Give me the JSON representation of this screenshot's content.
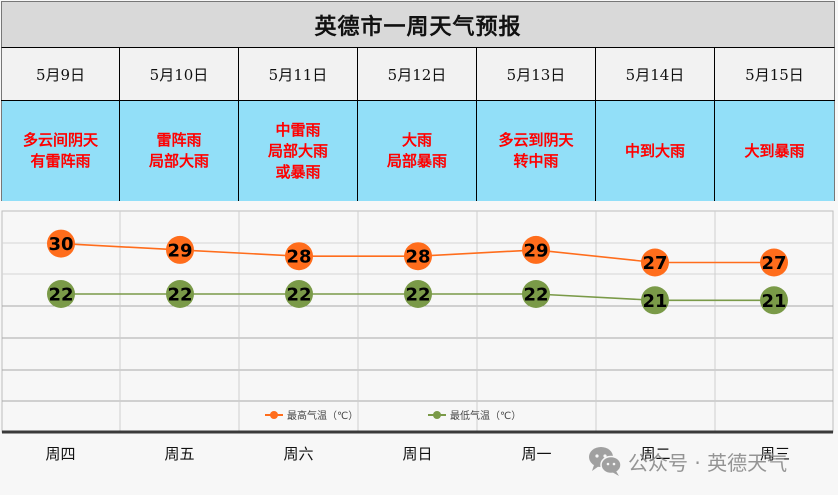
{
  "title": "英德市一周天气预报",
  "days": [
    {
      "date": "5月9日",
      "weather": "多云间阴天\n有雷阵雨",
      "weekday": "周四",
      "high": 30,
      "low": 22
    },
    {
      "date": "5月10日",
      "weather": "雷阵雨\n局部大雨",
      "weekday": "周五",
      "high": 29,
      "low": 22
    },
    {
      "date": "5月11日",
      "weather": "中雷雨\n局部大雨\n或暴雨",
      "weekday": "周六",
      "high": 28,
      "low": 22
    },
    {
      "date": "5月12日",
      "weather": "大雨\n局部暴雨",
      "weekday": "周日",
      "high": 28,
      "low": 22
    },
    {
      "date": "5月13日",
      "weather": "多云到阴天\n转中雨",
      "weekday": "周一",
      "high": 29,
      "low": 22
    },
    {
      "date": "5月14日",
      "weather": "中到大雨",
      "weekday": "周二",
      "high": 27,
      "low": 21
    },
    {
      "date": "5月15日",
      "weather": "大到暴雨",
      "weekday": "周三",
      "high": 27,
      "low": 21
    }
  ],
  "legend": {
    "high_label": "最高气温（℃）",
    "low_label": "最低气温（℃）"
  },
  "colors": {
    "high": "#ff6d1c",
    "low": "#7a9a48",
    "weather_text": "#ff0000",
    "condition_bg": "#92dff8",
    "title_bg": "#d9d9d9"
  },
  "watermark": {
    "icon": "wechat-icon",
    "text": "公众号 · 英德天气"
  },
  "chart_data": {
    "type": "line",
    "title": "英德市一周天气预报",
    "categories": [
      "周四",
      "周五",
      "周六",
      "周日",
      "周一",
      "周二",
      "周三"
    ],
    "x_dates": [
      "5月9日",
      "5月10日",
      "5月11日",
      "5月12日",
      "5月13日",
      "5月14日",
      "5月15日"
    ],
    "series": [
      {
        "name": "最高气温（℃）",
        "values": [
          30,
          29,
          28,
          28,
          29,
          27,
          27
        ],
        "color": "#ff6d1c"
      },
      {
        "name": "最低气温（℃）",
        "values": [
          22,
          22,
          22,
          22,
          22,
          21,
          21
        ],
        "color": "#7a9a48"
      }
    ],
    "xlabel": "",
    "ylabel": "",
    "data_labels": true,
    "grid": true,
    "legend_position": "bottom"
  }
}
